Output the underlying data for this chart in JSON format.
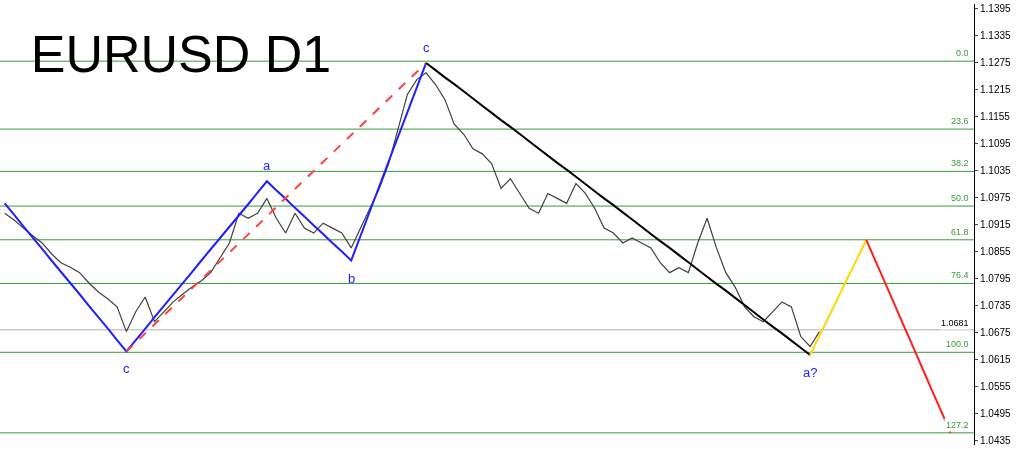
{
  "chart_data": {
    "type": "line",
    "title": "EURUSD D1",
    "tick_labels": "y",
    "grid": false,
    "marker": "none",
    "categories": [
      null,
      null,
      null,
      null,
      null,
      null,
      null,
      null,
      null,
      null,
      null,
      null,
      null,
      null,
      null,
      null,
      null,
      null,
      null,
      null,
      null,
      null,
      null,
      null,
      null,
      null,
      null,
      null,
      null,
      null,
      null,
      null,
      null,
      null,
      null,
      null,
      null,
      null,
      null,
      null,
      null,
      null,
      null,
      null,
      null,
      null,
      null,
      null,
      null,
      null,
      null,
      null,
      null,
      null,
      null,
      null,
      null,
      null,
      null,
      null,
      null,
      null,
      null,
      null,
      null,
      null,
      null,
      null,
      null,
      null,
      null,
      null,
      null,
      null,
      null,
      null,
      null,
      null,
      null,
      null,
      null,
      null,
      null,
      null,
      null,
      null,
      null,
      null,
      null,
      null,
      null,
      null,
      null,
      null,
      null,
      null,
      null,
      null,
      null,
      null,
      null,
      null,
      null,
      null
    ],
    "ylim": [
      1.0425,
      1.1405
    ],
    "yticks": [
      1.0435,
      1.0495,
      1.0555,
      1.0615,
      1.0675,
      1.0735,
      1.0795,
      1.0855,
      1.0915,
      1.0975,
      1.1035,
      1.1095,
      1.1155,
      1.1215,
      1.1275,
      1.1335,
      1.1395
    ],
    "series": [
      {
        "color": "#404040",
        "values": [
          1.094,
          1.0925,
          1.0907,
          1.089,
          1.0874,
          1.085,
          1.083,
          1.082,
          1.0808,
          1.0785,
          1.0765,
          1.075,
          1.0732,
          1.0677,
          1.0721,
          1.0754,
          1.0699,
          1.0721,
          1.0743,
          1.076,
          1.0776,
          1.079,
          1.0808,
          1.0841,
          1.0874,
          1.094,
          1.0929,
          1.094,
          1.0973,
          1.0929,
          1.0896,
          1.094,
          1.0907,
          1.0896,
          1.0918,
          1.0907,
          1.0896,
          1.0863,
          1.0907,
          1.0951,
          1.0995,
          1.105,
          1.1127,
          1.1204,
          1.1237,
          1.1252,
          1.1226,
          1.1193,
          1.1138,
          1.1116,
          1.1083,
          1.1072,
          1.105,
          1.0995,
          1.1017,
          1.0984,
          1.0951,
          1.094,
          1.0984,
          1.0973,
          1.0962,
          1.1006,
          1.0984,
          1.0951,
          1.0907,
          1.0896,
          1.0874,
          1.0885,
          1.0874,
          1.0863,
          1.083,
          1.0808,
          1.0819,
          1.0808,
          1.0874,
          1.0929,
          1.0863,
          1.0808,
          1.0776,
          1.0732,
          1.071,
          1.0699,
          1.0721,
          1.0743,
          1.0732,
          1.0666,
          1.0644,
          1.0677,
          null,
          null,
          null,
          null,
          null,
          null,
          null,
          null,
          null,
          null,
          null,
          null,
          null,
          null,
          null,
          null
        ]
      },
      {
        "color": "#1f1fff",
        "values": [
          1.0962,
          1.0937,
          1.0911,
          1.0886,
          1.0861,
          1.0835,
          1.081,
          1.0785,
          1.076,
          1.0734,
          1.0709,
          1.0684,
          1.0658,
          1.0633,
          1.0658,
          1.0683,
          1.0709,
          1.0734,
          1.0759,
          1.0784,
          1.0809,
          1.0835,
          1.086,
          1.0885,
          1.091,
          1.0935,
          1.096,
          1.0986,
          1.1011,
          1.0991,
          1.0972,
          1.0952,
          1.0933,
          1.0913,
          1.0894,
          1.0874,
          1.0855,
          1.0835,
          1.089,
          1.0945,
          1.1,
          1.1055,
          1.111,
          1.1164,
          1.1219,
          1.1274,
          null,
          null,
          null,
          null,
          null,
          null,
          null,
          null,
          null,
          null,
          null,
          null,
          null,
          null,
          null,
          null,
          null,
          null,
          null,
          null,
          null,
          null,
          null,
          null,
          null,
          null,
          null,
          null,
          null,
          null,
          null,
          null,
          null,
          null,
          null,
          null,
          null,
          null,
          null,
          null,
          null,
          null,
          null,
          null,
          null,
          null,
          null,
          null,
          null,
          null,
          null,
          null,
          null,
          null,
          null,
          null,
          null,
          null
        ]
      },
      {
        "color": "#ff4040",
        "line_style": "dashed",
        "values": [
          null,
          null,
          null,
          null,
          null,
          null,
          null,
          null,
          null,
          null,
          null,
          null,
          null,
          1.0633,
          1.0653,
          1.0673,
          1.0693,
          1.0713,
          1.0733,
          1.0753,
          1.0773,
          1.0793,
          1.0813,
          1.0833,
          1.0853,
          1.0873,
          1.0893,
          1.0913,
          1.0933,
          1.0954,
          1.0974,
          1.0994,
          1.1014,
          1.1034,
          1.1054,
          1.1074,
          1.1094,
          1.1114,
          1.1134,
          1.1154,
          1.1174,
          1.1194,
          1.1214,
          1.1234,
          1.1254,
          1.1274,
          null,
          null,
          null,
          null,
          null,
          null,
          null,
          null,
          null,
          null,
          null,
          null,
          null,
          null,
          null,
          null,
          null,
          null,
          null,
          null,
          null,
          null,
          null,
          null,
          null,
          null,
          null,
          null,
          null,
          null,
          null,
          null,
          null,
          null,
          null,
          null,
          null,
          null,
          null,
          null,
          null,
          null,
          null,
          null,
          null,
          null,
          null,
          null,
          null,
          null,
          null,
          null,
          null,
          null,
          null,
          null,
          null,
          null
        ]
      },
      {
        "color": "#000000",
        "values": [
          null,
          null,
          null,
          null,
          null,
          null,
          null,
          null,
          null,
          null,
          null,
          null,
          null,
          null,
          null,
          null,
          null,
          null,
          null,
          null,
          null,
          null,
          null,
          null,
          null,
          null,
          null,
          null,
          null,
          null,
          null,
          null,
          null,
          null,
          null,
          null,
          null,
          null,
          null,
          null,
          null,
          null,
          null,
          null,
          null,
          1.1274,
          1.1258,
          1.1242,
          1.1227,
          1.1211,
          1.1195,
          1.1179,
          1.1163,
          1.1147,
          1.1132,
          1.1116,
          1.11,
          1.1084,
          1.1068,
          1.1052,
          1.1037,
          1.1021,
          1.1005,
          1.0989,
          1.0973,
          1.0958,
          1.0942,
          1.0926,
          1.091,
          1.0894,
          1.0878,
          1.0863,
          1.0847,
          1.0831,
          1.0815,
          1.0799,
          1.0783,
          1.0768,
          1.0752,
          1.0736,
          1.072,
          1.0704,
          1.0688,
          1.0673,
          1.0657,
          1.0641,
          1.0625,
          null,
          null,
          null,
          null,
          null,
          null,
          null,
          null,
          null,
          null,
          null,
          null,
          null,
          null,
          null,
          null,
          null
        ]
      },
      {
        "color": "#ffd700",
        "values": [
          null,
          null,
          null,
          null,
          null,
          null,
          null,
          null,
          null,
          null,
          null,
          null,
          null,
          null,
          null,
          null,
          null,
          null,
          null,
          null,
          null,
          null,
          null,
          null,
          null,
          null,
          null,
          null,
          null,
          null,
          null,
          null,
          null,
          null,
          null,
          null,
          null,
          null,
          null,
          null,
          null,
          null,
          null,
          null,
          null,
          null,
          null,
          null,
          null,
          null,
          null,
          null,
          null,
          null,
          null,
          null,
          null,
          null,
          null,
          null,
          null,
          null,
          null,
          null,
          null,
          null,
          null,
          null,
          null,
          null,
          null,
          null,
          null,
          null,
          null,
          null,
          null,
          null,
          null,
          null,
          null,
          null,
          null,
          null,
          null,
          null,
          1.0625,
          1.0668,
          1.071,
          1.0753,
          1.0796,
          1.0838,
          1.0881,
          null,
          null,
          null,
          null,
          null,
          null,
          null,
          null,
          null,
          null,
          null
        ]
      },
      {
        "color": "#ff2020",
        "values": [
          null,
          null,
          null,
          null,
          null,
          null,
          null,
          null,
          null,
          null,
          null,
          null,
          null,
          null,
          null,
          null,
          null,
          null,
          null,
          null,
          null,
          null,
          null,
          null,
          null,
          null,
          null,
          null,
          null,
          null,
          null,
          null,
          null,
          null,
          null,
          null,
          null,
          null,
          null,
          null,
          null,
          null,
          null,
          null,
          null,
          null,
          null,
          null,
          null,
          null,
          null,
          null,
          null,
          null,
          null,
          null,
          null,
          null,
          null,
          null,
          null,
          null,
          null,
          null,
          null,
          null,
          null,
          null,
          null,
          null,
          null,
          null,
          null,
          null,
          null,
          null,
          null,
          null,
          null,
          null,
          null,
          null,
          null,
          null,
          null,
          null,
          null,
          null,
          null,
          null,
          null,
          null,
          1.0881,
          1.0833,
          1.0786,
          1.0738,
          1.069,
          1.0643,
          1.0595,
          1.0547,
          1.05,
          1.0452,
          null,
          null
        ]
      }
    ],
    "ref_lines": [
      {
        "axis": "y",
        "value": 1.1278,
        "color": "#3a9a3a"
      },
      {
        "axis": "y",
        "value": 1.1127,
        "color": "#3a9a3a"
      },
      {
        "axis": "y",
        "value": 1.1033,
        "color": "#3a9a3a"
      },
      {
        "axis": "y",
        "value": 1.0956,
        "color": "#3a9a3a"
      },
      {
        "axis": "y",
        "value": 1.0881,
        "color": "#3a9a3a"
      },
      {
        "axis": "y",
        "value": 1.0784,
        "color": "#3a9a3a"
      },
      {
        "axis": "y",
        "value": 1.0631,
        "color": "#3a9a3a"
      },
      {
        "axis": "y",
        "value": 1.0452,
        "color": "#3a9a3a"
      },
      {
        "axis": "y",
        "value": 1.0681,
        "label": "1.0681",
        "color": "#b0b0b0"
      }
    ],
    "annotations": [
      {
        "text": "c",
        "y": 1.0633
      },
      {
        "text": "a",
        "y": 1.1011
      },
      {
        "text": "b",
        "y": 1.0835
      },
      {
        "text": "c",
        "y": 1.1274
      },
      {
        "text": "a?",
        "y": 1.0625
      },
      {
        "text": "0.0",
        "y": 1.1278
      },
      {
        "text": "23.6",
        "y": 1.1127
      },
      {
        "text": "38.2",
        "y": 1.1033
      },
      {
        "text": "50.0",
        "y": 1.0956
      },
      {
        "text": "61.8",
        "y": 1.0881
      },
      {
        "text": "76.4",
        "y": 1.0784
      },
      {
        "text": "100.0",
        "y": 1.0631
      },
      {
        "text": "127.2",
        "y": 1.0452
      }
    ]
  }
}
